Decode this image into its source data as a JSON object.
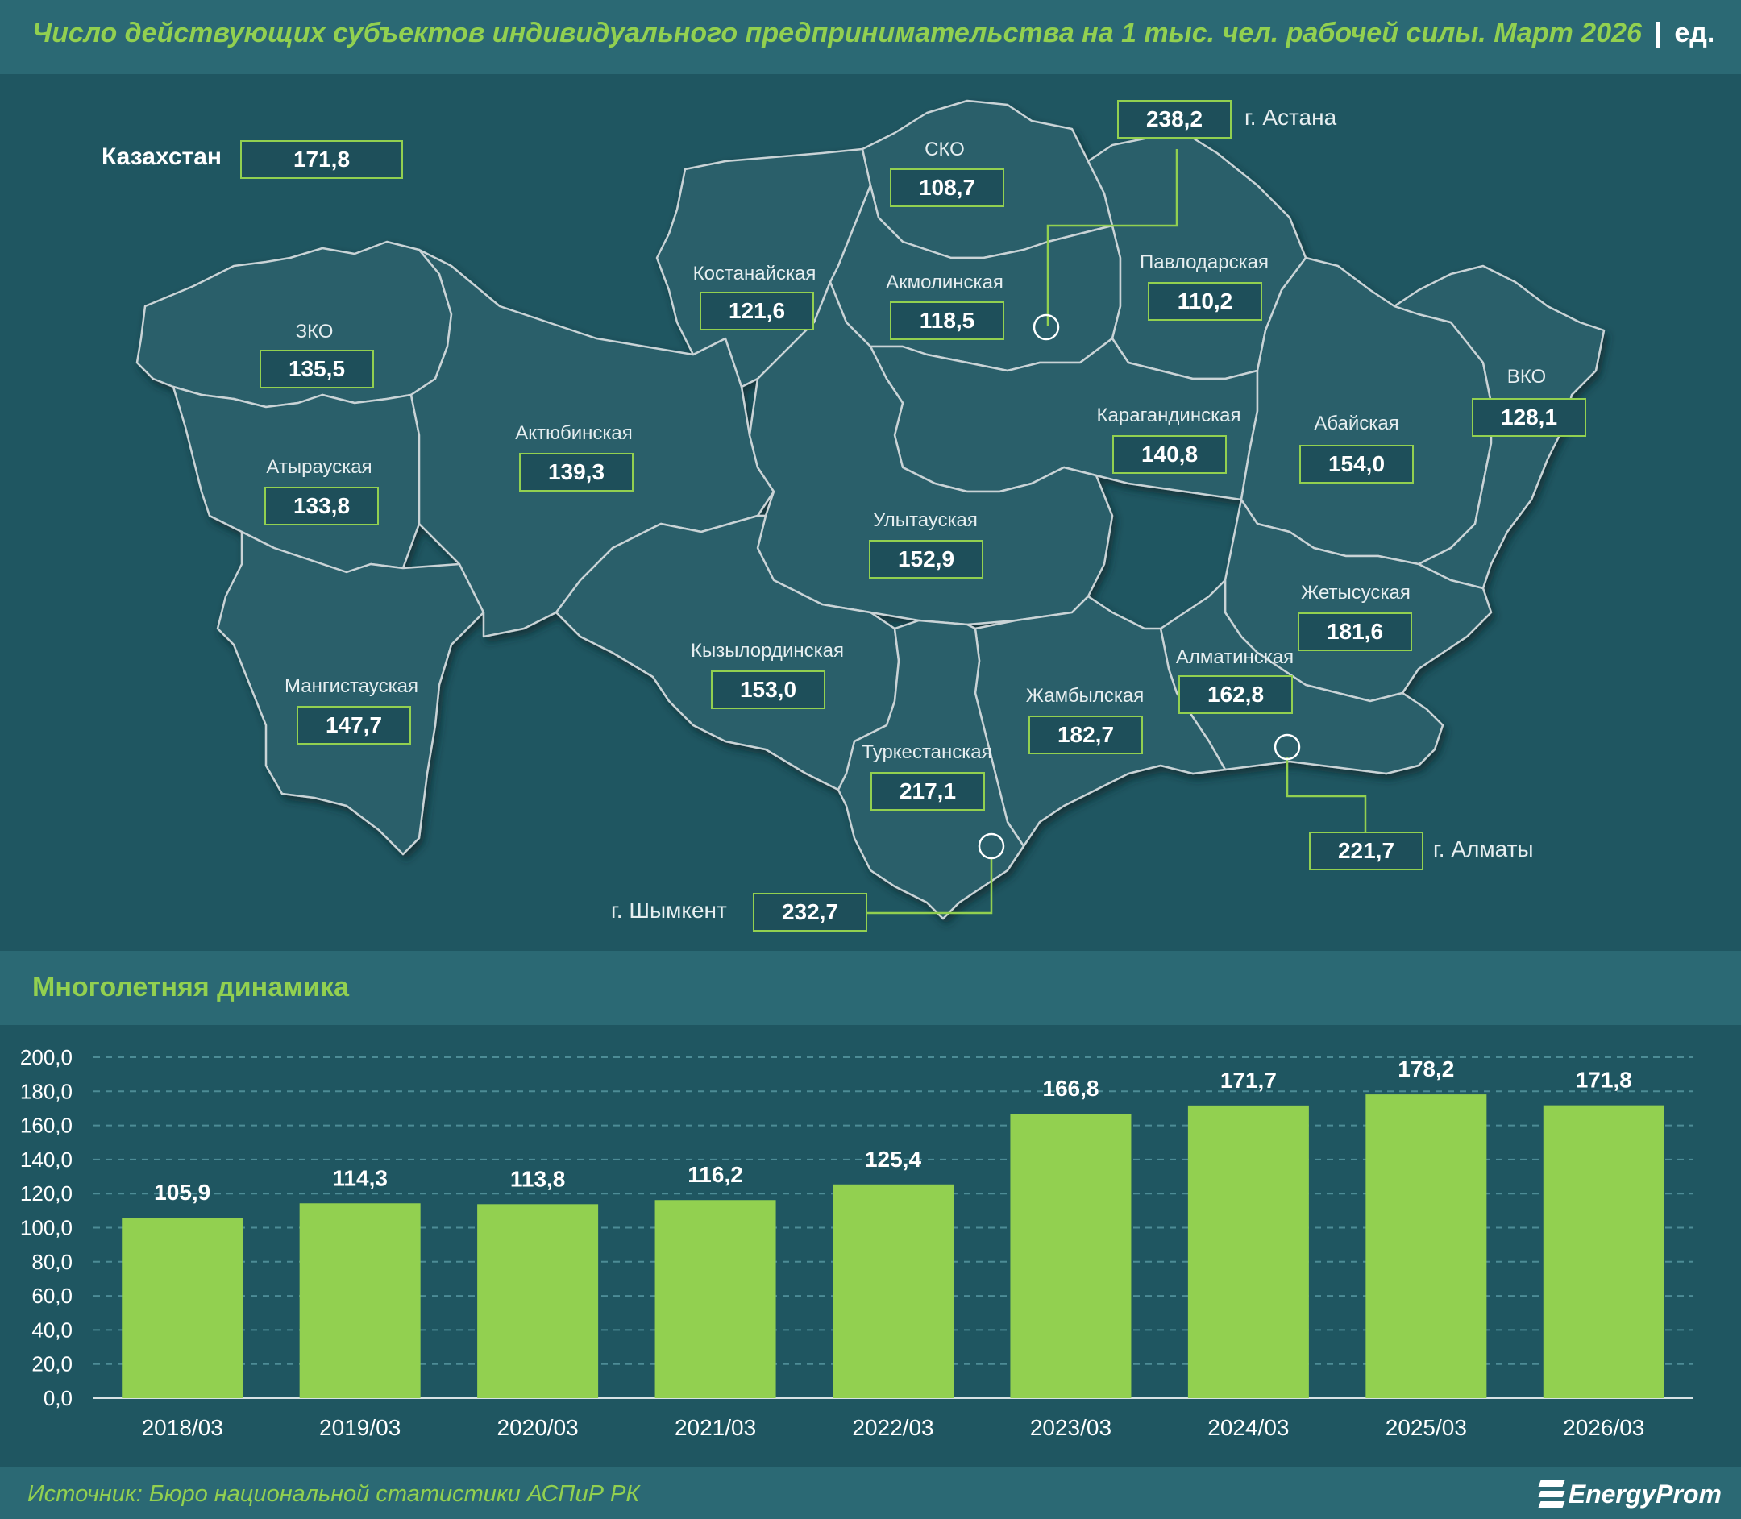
{
  "header": {
    "title": "Число действующих субъектов индивидуального предпринимательства на 1 тыс. чел. рабочей силы. Март 2026",
    "separator": "|",
    "unit": "ед."
  },
  "map": {
    "country_label": "Казахстан",
    "country_value": "171,8",
    "regions": [
      {
        "name": "СКО",
        "value": "108,7"
      },
      {
        "name": "Костанайская",
        "value": "121,6"
      },
      {
        "name": "Акмолинская",
        "value": "118,5"
      },
      {
        "name": "Павлодарская",
        "value": "110,2"
      },
      {
        "name": "ЗКО",
        "value": "135,5"
      },
      {
        "name": "Актюбинская",
        "value": "139,3"
      },
      {
        "name": "Атырауская",
        "value": "133,8"
      },
      {
        "name": "Карагандинская",
        "value": "140,8"
      },
      {
        "name": "Абайская",
        "value": "154,0"
      },
      {
        "name": "ВКО",
        "value": "128,1"
      },
      {
        "name": "Улытауская",
        "value": "152,9"
      },
      {
        "name": "Жетысуская",
        "value": "181,6"
      },
      {
        "name": "Кызылординская",
        "value": "153,0"
      },
      {
        "name": "Мангистауская",
        "value": "147,7"
      },
      {
        "name": "Алматинская",
        "value": "162,8"
      },
      {
        "name": "Жамбылская",
        "value": "182,7"
      },
      {
        "name": "Туркестанская",
        "value": "217,1"
      }
    ],
    "cities": [
      {
        "name": "г. Астана",
        "value": "238,2"
      },
      {
        "name": "г. Алматы",
        "value": "221,7"
      },
      {
        "name": "г. Шымкент",
        "value": "232,7"
      }
    ]
  },
  "section2": {
    "title": "Многолетняя динамика"
  },
  "chart_data": {
    "type": "bar",
    "title": "Многолетняя динамика",
    "categories": [
      "2018/03",
      "2019/03",
      "2020/03",
      "2021/03",
      "2022/03",
      "2023/03",
      "2024/03",
      "2025/03",
      "2026/03"
    ],
    "values": [
      105.9,
      114.3,
      113.8,
      116.2,
      125.4,
      166.8,
      171.7,
      178.2,
      171.8
    ],
    "value_labels": [
      "105,9",
      "114,3",
      "113,8",
      "116,2",
      "125,4",
      "166,8",
      "171,7",
      "178,2",
      "171,8"
    ],
    "ylim": [
      0,
      200
    ],
    "yticks": [
      0,
      20,
      40,
      60,
      80,
      100,
      120,
      140,
      160,
      180,
      200
    ],
    "ytick_labels": [
      "0,0",
      "20,0",
      "40,0",
      "60,0",
      "80,0",
      "100,0",
      "120,0",
      "140,0",
      "160,0",
      "180,0",
      "200,0"
    ],
    "grid": true,
    "bar_color": "#92d050",
    "grid_color": "#4d8c96",
    "xlabel": "",
    "ylabel": ""
  },
  "footer": {
    "source": "Источник: Бюро национальной статистики АСПиР РК",
    "logo_text": "EnergyProm"
  },
  "colors": {
    "background": "#1f5661",
    "band": "#2b6974",
    "accent": "#92d050",
    "region_fill": "#1e4f5a",
    "region_stroke": "#c9d3d6"
  }
}
